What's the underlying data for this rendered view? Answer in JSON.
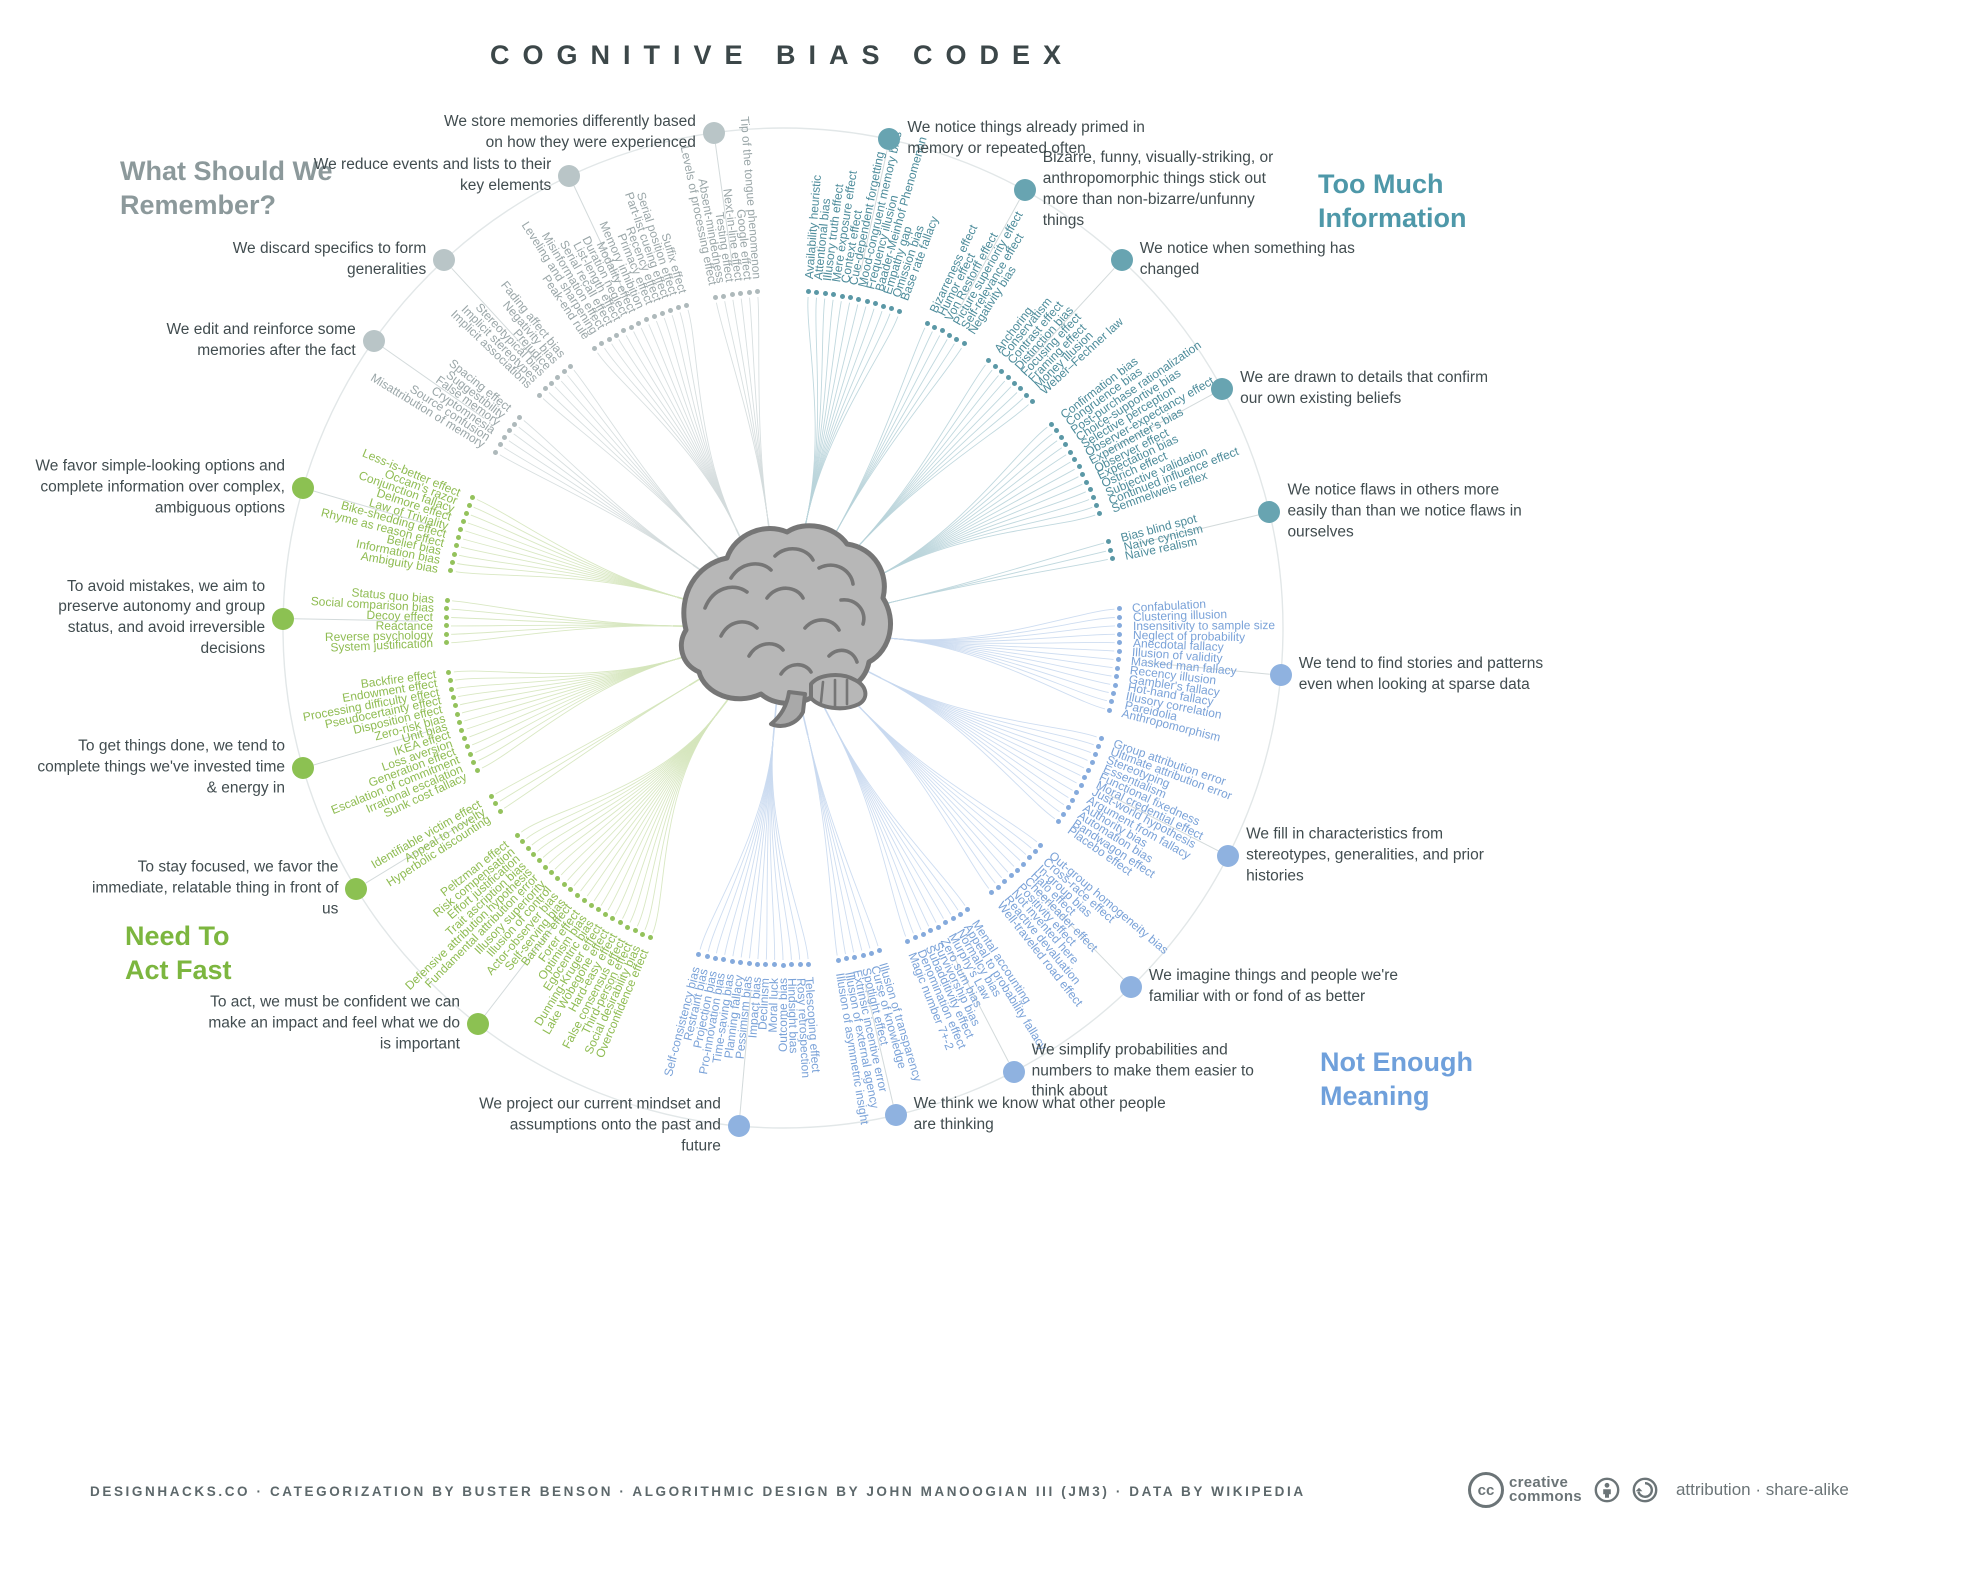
{
  "title": "COGNITIVE BIAS CODEX",
  "footer": {
    "credits": "DESIGNHACKS.CO · CATEGORIZATION BY BUSTER BENSON · ALGORITHMIC DESIGN BY JOHN MANOOGIAN III (JM3) · DATA BY WIKIPEDIA",
    "cc_line1": "creative",
    "cc_line2": "commons",
    "license": "attribution · share-alike"
  },
  "quadrants": [
    {
      "id": "too-much-information",
      "heading": "Too Much Information",
      "colors": {
        "heading": "#4e98a9",
        "label": "#4d8c9b",
        "dot": "#5b98a6",
        "ann_dot": "#68a4b1",
        "curve": "#b9d4da"
      },
      "clusters": [
        {
          "annotation": "We notice things already primed in memory or repeated often",
          "items": [
            "Availability heuristic",
            "Attentional bias",
            "Illusory truth effect",
            "Mere exposure effect",
            "Context effect",
            "Cue-dependent forgetting",
            "Mood-congruent memory bias",
            "Frequency illusion",
            "Baader-Meinhof Phenomenon",
            "Empathy gap",
            "Omission bias",
            "Base rate fallacy"
          ]
        },
        {
          "annotation": "Bizarre, funny, visually-striking, or anthropomorphic things stick out more than non-bizarre/unfunny things",
          "items": [
            "Bizarreness effect",
            "Humor effect",
            "Von Restorff effect",
            "Picture superiority effect",
            "Self-relevance effect",
            "Negativity bias"
          ]
        },
        {
          "annotation": "We notice when something has changed",
          "items": [
            "Anchoring",
            "Conservatism",
            "Contrast effect",
            "Distinction bias",
            "Focusing effect",
            "Framing effect",
            "Money illusion",
            "Weber–Fechner law"
          ]
        },
        {
          "annotation": "We are drawn to details that confirm our own existing beliefs",
          "items": [
            "Confirmation bias",
            "Congruence bias",
            "Post-purchase rationalization",
            "Choice-supportive bias",
            "Selective perception",
            "Observer-expectancy effect",
            "Experimenter's bias",
            "Observer effect",
            "Expectation bias",
            "Ostrich effect",
            "Subjective validation",
            "Continued influence effect",
            "Semmelweis reflex"
          ]
        },
        {
          "annotation": "We notice flaws in others more easily than than we notice flaws in ourselves",
          "items": [
            "Bias blind spot",
            "Naïve cynicism",
            "Naïve realism"
          ]
        }
      ]
    },
    {
      "id": "not-enough-meaning",
      "heading": "Not Enough Meaning",
      "colors": {
        "heading": "#6fa0db",
        "label": "#7aa2d8",
        "dot": "#85aadc",
        "ann_dot": "#8fb2e0",
        "curve": "#c9d9ef"
      },
      "clusters": [
        {
          "annotation": "We tend to find stories and patterns even when looking at sparse data",
          "items": [
            "Confabulation",
            "Clustering illusion",
            "Insensitivity to sample size",
            "Neglect of probability",
            "Anecdotal fallacy",
            "Illusion of validity",
            "Masked man fallacy",
            "Recency illusion",
            "Gambler's fallacy",
            "Hot-hand fallacy",
            "Illusory correlation",
            "Pareidolia",
            "Anthropomorphism"
          ]
        },
        {
          "annotation": "We fill in characteristics from stereotypes, generalities, and prior histories",
          "items": [
            "Group attribution error",
            "Ultimate attribution error",
            "Stereotyping",
            "Essentialism",
            "Functional fixedness",
            "Moral credential effect",
            "Just-world hypothesis",
            "Argument from fallacy",
            "Authority bias",
            "Automation bias",
            "Bandwagon effect",
            "Placebo effect"
          ]
        },
        {
          "annotation": "We imagine things and people we're familiar with or fond of as better",
          "items": [
            "Out-group homogeneity bias",
            "Cross-race effect",
            "In-group bias",
            "Halo effect",
            "Cheerleader effect",
            "Positivity effect",
            "Not invented here",
            "Reactive devaluation",
            "Well-traveled road effect"
          ]
        },
        {
          "annotation": "We simplify probabilities and numbers to make them easier to think about",
          "items": [
            "Mental accounting",
            "Appeal to probability fallacy",
            "Normalcy bias",
            "Murphy's Law",
            "Zero sum bias",
            "Survivorship bias",
            "Subadditivity effect",
            "Denomination effect",
            "Magic number 7+-2"
          ]
        },
        {
          "annotation": "We think we know what other people are thinking",
          "items": [
            "Illusion of transparency",
            "Curse of knowledge",
            "Spotlight effect",
            "Extrinsic incentive error",
            "Illusion of external agency",
            "Illusion of asymmetric insight"
          ]
        },
        {
          "annotation": "We project our current mindset and assumptions onto the past and future",
          "items": [
            "Telescoping effect",
            "Rosy retrospection",
            "Hindsight bias",
            "Outcome bias",
            "Moral luck",
            "Declinism",
            "Impact bias",
            "Pessimism bias",
            "Planning fallacy",
            "Time-saving bias",
            "Pro-innovation bias",
            "Projection bias",
            "Restraint bias",
            "Self-consistency bias"
          ]
        }
      ]
    },
    {
      "id": "need-to-act-fast",
      "heading": "Need To Act Fast",
      "colors": {
        "heading": "#7cb63f",
        "label": "#8fbc52",
        "dot": "#94c25c",
        "ann_dot": "#8cc152",
        "curve": "#d5e6bc"
      },
      "clusters": [
        {
          "annotation": "To act, we must be confident we can make an impact and feel what we do is important",
          "items": [
            "Overconfidence effect",
            "Social desirability bias",
            "Third-person effect",
            "False consensus effect",
            "Hard-easy effect",
            "Lake Wobegone effect",
            "Dunning-Kruger effect",
            "Egocentric bias",
            "Optimism bias",
            "Forer effect",
            "Barnum effect",
            "Self-serving bias",
            "Actor-observer bias",
            "Illusion of control",
            "Illusory superiority",
            "Fundamental attribution error",
            "Defensive attribution hypothesis",
            "Trait ascription bias",
            "Effort justification",
            "Risk compensation",
            "Peltzman effect"
          ]
        },
        {
          "annotation": "To stay focused, we favor the immediate, relatable thing in front of us",
          "items": [
            "Hyperbolic discounting",
            "Appeal to novelty",
            "Identifiable victim effect"
          ]
        },
        {
          "annotation": "To get things done, we tend to complete things we've invested time & energy in",
          "items": [
            "Sunk cost fallacy",
            "Irrational escalation",
            "Escalation of commitment",
            "Generation effect",
            "Loss aversion",
            "IKEA effect",
            "Unit bias",
            "Zero-risk bias",
            "Disposition effect",
            "Pseudocertainty effect",
            "Processing difficulty effect",
            "Endowment effect",
            "Backfire effect"
          ]
        },
        {
          "annotation": "To avoid mistakes, we aim to preserve autonomy and group status, and avoid irreversible decisions",
          "items": [
            "System justification",
            "Reverse psychology",
            "Reactance",
            "Decoy effect",
            "Social comparison bias",
            "Status quo bias"
          ]
        },
        {
          "annotation": "We favor simple-looking options and complete information over complex, ambiguous options",
          "items": [
            "Ambiguity bias",
            "Information bias",
            "Belief bias",
            "Rhyme as reason effect",
            "Bike-shedding effect",
            "Law of Triviality",
            "Delmore effect",
            "Conjunction fallacy",
            "Occam's razor",
            "Less-is-better effect"
          ]
        }
      ]
    },
    {
      "id": "what-should-we-remember",
      "heading": "What Should We Remember?",
      "colors": {
        "heading": "#8c999b",
        "label": "#9aa6a8",
        "dot": "#aeb9bb",
        "ann_dot": "#b9c5c7",
        "curve": "#d4dcdd"
      },
      "clusters": [
        {
          "annotation": "We edit and reinforce some memories after the fact",
          "items": [
            "Misattribution of memory",
            "Source confusion",
            "Cryptomnesia",
            "False memory",
            "Suggestibility",
            "Spacing effect"
          ]
        },
        {
          "annotation": "We discard specifics to form generalities",
          "items": [
            "Implicit associations",
            "Implicit stereotypes",
            "Stereotypical bias",
            "Prejudice",
            "Negativity bias",
            "Fading affect bias"
          ]
        },
        {
          "annotation": "We reduce events and lists to their key elements",
          "items": [
            "Peak-end rule",
            "Leveling and sharpening",
            "Misinformation effect",
            "Serial recall effect",
            "List-length effect",
            "Duration neglect",
            "Modality effect",
            "Memory inhibition",
            "Primacy effect",
            "Recency effect",
            "Part-list cueing effect",
            "Serial position effect",
            "Suffix effect"
          ]
        },
        {
          "annotation": "We store memories differently based on how they were experienced",
          "items": [
            "Levels of processing effect",
            "Absent-mindedness",
            "Testing effect",
            "Next-in-line effect",
            "Google effect",
            "Tip of the tongue phenomenon"
          ]
        }
      ]
    }
  ]
}
